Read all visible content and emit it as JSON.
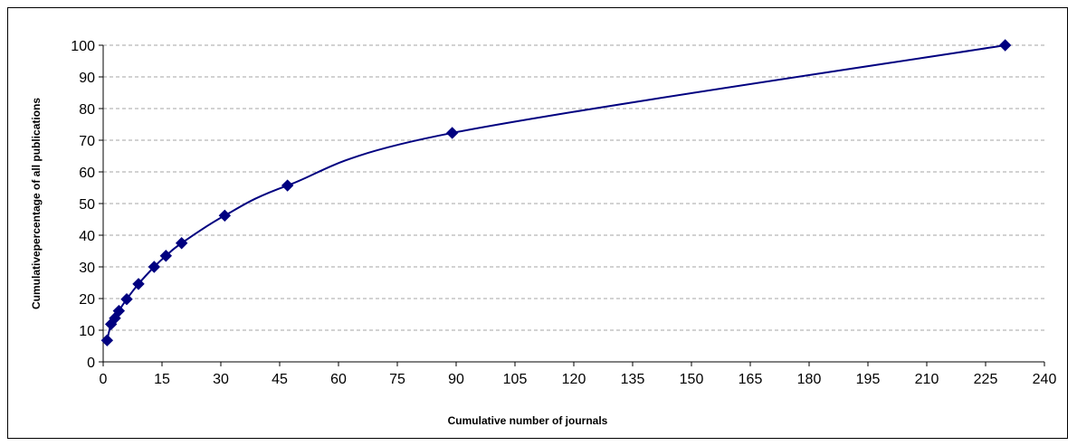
{
  "chart_data": {
    "type": "scatter",
    "xlabel": "Cumulative number of journals",
    "ylabel": "Cumulativepercentage of all publications",
    "xlim": [
      0,
      240
    ],
    "ylim": [
      0,
      100
    ],
    "xticks": [
      0,
      15,
      30,
      45,
      60,
      75,
      90,
      105,
      120,
      135,
      150,
      165,
      180,
      195,
      210,
      225,
      240
    ],
    "yticks": [
      0,
      10,
      20,
      30,
      40,
      50,
      60,
      70,
      80,
      90,
      100
    ],
    "grid": "horizontal-dashed",
    "legend": "none",
    "line": "smoothed",
    "series": [
      {
        "x": [
          1,
          2,
          3,
          4,
          6,
          9,
          13,
          16,
          20,
          31,
          47,
          89,
          230
        ],
        "y": [
          6.8,
          11.9,
          13.8,
          16.1,
          19.8,
          24.6,
          30.0,
          33.5,
          37.5,
          46.2,
          55.7,
          72.3,
          100
        ]
      }
    ],
    "colors": {
      "line": "#000080",
      "marker": "#000080",
      "grid": "#a6a6a6",
      "axis": "#000000"
    }
  }
}
